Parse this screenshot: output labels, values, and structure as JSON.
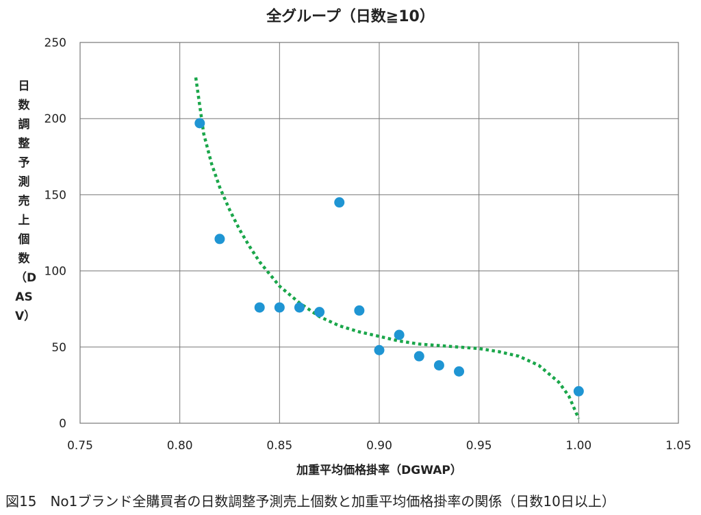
{
  "chart_data": {
    "type": "scatter",
    "title": "全グループ（日数≧10）",
    "xlabel": "加重平均価格掛率（DGWAP）",
    "ylabel": "日数調整予測売上個数（DASV）",
    "xlim": [
      0.75,
      1.05
    ],
    "ylim": [
      0,
      250
    ],
    "x_ticks": [
      0.75,
      0.8,
      0.85,
      0.9,
      0.95,
      1.0,
      1.05
    ],
    "x_tick_labels": [
      "0.75",
      "0.80",
      "0.85",
      "0.90",
      "0.95",
      "1.00",
      "1.05"
    ],
    "y_ticks": [
      0,
      50,
      100,
      150,
      200,
      250
    ],
    "y_tick_labels": [
      "0",
      "50",
      "100",
      "150",
      "200",
      "250"
    ],
    "grid": true,
    "legend": "none",
    "series": [
      {
        "kind": "points",
        "color": "#1f95d3",
        "points": [
          {
            "x": 0.81,
            "y": 197
          },
          {
            "x": 0.82,
            "y": 121
          },
          {
            "x": 0.84,
            "y": 76
          },
          {
            "x": 0.85,
            "y": 76
          },
          {
            "x": 0.86,
            "y": 76
          },
          {
            "x": 0.87,
            "y": 73
          },
          {
            "x": 0.88,
            "y": 145
          },
          {
            "x": 0.89,
            "y": 74
          },
          {
            "x": 0.9,
            "y": 48
          },
          {
            "x": 0.91,
            "y": 58
          },
          {
            "x": 0.92,
            "y": 44
          },
          {
            "x": 0.93,
            "y": 38
          },
          {
            "x": 0.94,
            "y": 34
          },
          {
            "x": 1.0,
            "y": 21
          }
        ]
      },
      {
        "kind": "trendline",
        "style": "dotted",
        "color": "#1aa64a",
        "points": [
          {
            "x": 0.808,
            "y": 227
          },
          {
            "x": 0.812,
            "y": 190
          },
          {
            "x": 0.816,
            "y": 170
          },
          {
            "x": 0.82,
            "y": 155
          },
          {
            "x": 0.825,
            "y": 140
          },
          {
            "x": 0.83,
            "y": 127
          },
          {
            "x": 0.835,
            "y": 116
          },
          {
            "x": 0.84,
            "y": 106
          },
          {
            "x": 0.85,
            "y": 90
          },
          {
            "x": 0.86,
            "y": 79
          },
          {
            "x": 0.87,
            "y": 70
          },
          {
            "x": 0.88,
            "y": 64
          },
          {
            "x": 0.89,
            "y": 60
          },
          {
            "x": 0.9,
            "y": 57
          },
          {
            "x": 0.91,
            "y": 54
          },
          {
            "x": 0.92,
            "y": 52
          },
          {
            "x": 0.93,
            "y": 51
          },
          {
            "x": 0.94,
            "y": 50
          },
          {
            "x": 0.95,
            "y": 49
          },
          {
            "x": 0.96,
            "y": 47
          },
          {
            "x": 0.97,
            "y": 44
          },
          {
            "x": 0.98,
            "y": 38
          },
          {
            "x": 0.99,
            "y": 27
          },
          {
            "x": 0.995,
            "y": 18
          },
          {
            "x": 1.0,
            "y": 3
          }
        ]
      }
    ]
  },
  "caption": "図15　No1ブランド全購買者の日数調整予測売上個数と加重平均価格掛率の関係（日数10日以上）"
}
